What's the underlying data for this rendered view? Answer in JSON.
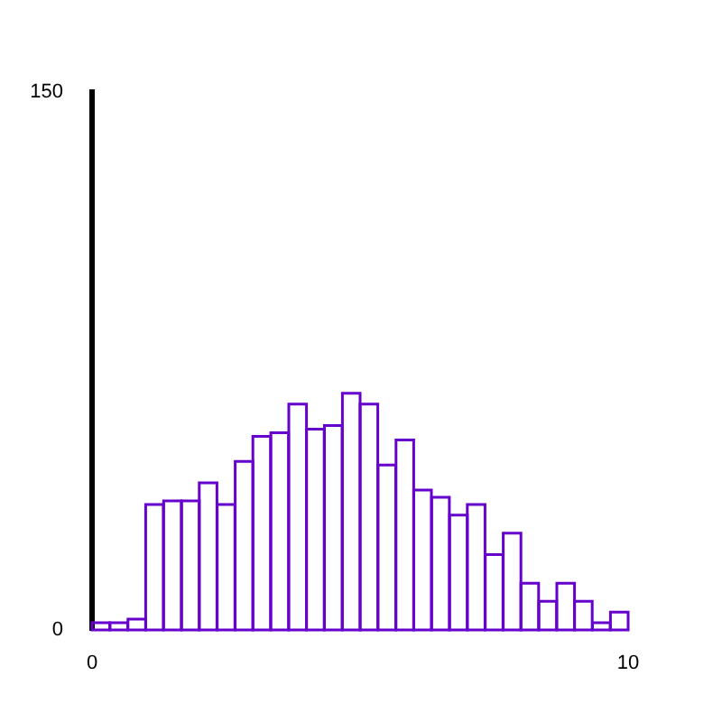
{
  "chart_data": {
    "type": "histogram",
    "bins": [
      0,
      0.33,
      0.67,
      1,
      1.33,
      1.67,
      2,
      2.33,
      2.67,
      3,
      3.33,
      3.67,
      4,
      4.33,
      4.67,
      5,
      5.33,
      5.67,
      6,
      6.33,
      6.67,
      7,
      7.33,
      7.67,
      8,
      8.33,
      8.67,
      9,
      9.33,
      9.67,
      10
    ],
    "values": [
      2,
      2,
      3,
      35,
      36,
      36,
      41,
      35,
      47,
      54,
      55,
      63,
      56,
      57,
      66,
      63,
      46,
      53,
      39,
      37,
      32,
      35,
      21,
      27,
      13,
      8,
      13,
      8,
      2,
      5
    ],
    "color": "#6600cc",
    "xlim": [
      0,
      10
    ],
    "ylim": [
      0,
      150
    ],
    "xticks": [
      0,
      10
    ],
    "yticks": [
      0,
      150
    ],
    "grid": false,
    "legend": false
  }
}
